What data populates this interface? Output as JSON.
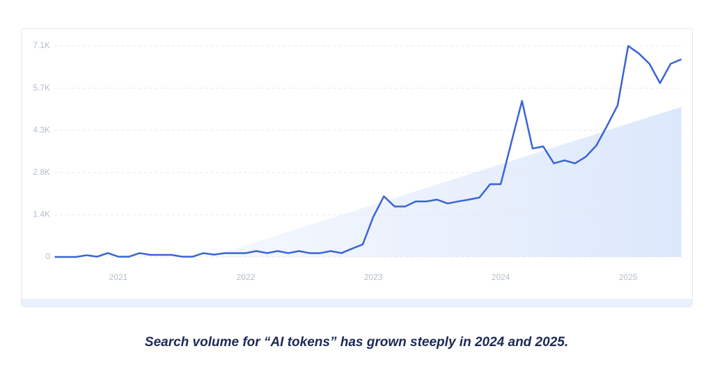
{
  "chart_data": {
    "type": "line",
    "caption": "Search volume for “AI tokens” has grown steeply in 2024 and 2025.",
    "x": [
      2020.5,
      2020.583,
      2020.667,
      2020.75,
      2020.833,
      2020.917,
      2021,
      2021.083,
      2021.167,
      2021.25,
      2021.333,
      2021.417,
      2021.5,
      2021.583,
      2021.667,
      2021.75,
      2021.833,
      2021.917,
      2022,
      2022.083,
      2022.167,
      2022.25,
      2022.333,
      2022.417,
      2022.5,
      2022.583,
      2022.667,
      2022.75,
      2022.833,
      2022.917,
      2023,
      2023.083,
      2023.167,
      2023.25,
      2023.333,
      2023.417,
      2023.5,
      2023.583,
      2023.667,
      2023.75,
      2023.833,
      2023.917,
      2024,
      2024.083,
      2024.167,
      2024.25,
      2024.333,
      2024.417,
      2024.5,
      2024.583,
      2024.667,
      2024.75,
      2024.833,
      2024.917,
      2025,
      2025.083,
      2025.167,
      2025.25,
      2025.333,
      2025.417
    ],
    "series": [
      {
        "color": "#3a63d6",
        "values": [
          0,
          0,
          0,
          60,
          10,
          130,
          10,
          10,
          130,
          70,
          70,
          70,
          10,
          10,
          130,
          80,
          130,
          130,
          130,
          200,
          130,
          200,
          130,
          200,
          130,
          130,
          200,
          130,
          280,
          420,
          1350,
          2040,
          1700,
          1700,
          1870,
          1870,
          1930,
          1800,
          1870,
          1930,
          2000,
          2450,
          2450,
          3850,
          5250,
          3650,
          3720,
          3150,
          3250,
          3150,
          3370,
          3750,
          4400,
          5100,
          7100,
          6850,
          6500,
          5850,
          6500,
          6650
        ]
      }
    ],
    "trend": {
      "color": "#dfeafb",
      "x": [
        2021.71,
        2025.417
      ],
      "values": [
        0,
        5050
      ]
    },
    "xlim": [
      2020.5,
      2025.417
    ],
    "xticks": [
      2021,
      2022,
      2023,
      2024,
      2025
    ],
    "ylim": [
      0,
      7100
    ],
    "yticks": [
      0,
      {
        "value": 1420,
        "label": "1.4K"
      },
      {
        "value": 2840,
        "label": "2.8K"
      },
      {
        "value": 4260,
        "label": "4.3K"
      },
      {
        "value": 5680,
        "label": "5.7K"
      },
      {
        "value": 7100,
        "label": "7.1K"
      }
    ],
    "grid": true
  }
}
